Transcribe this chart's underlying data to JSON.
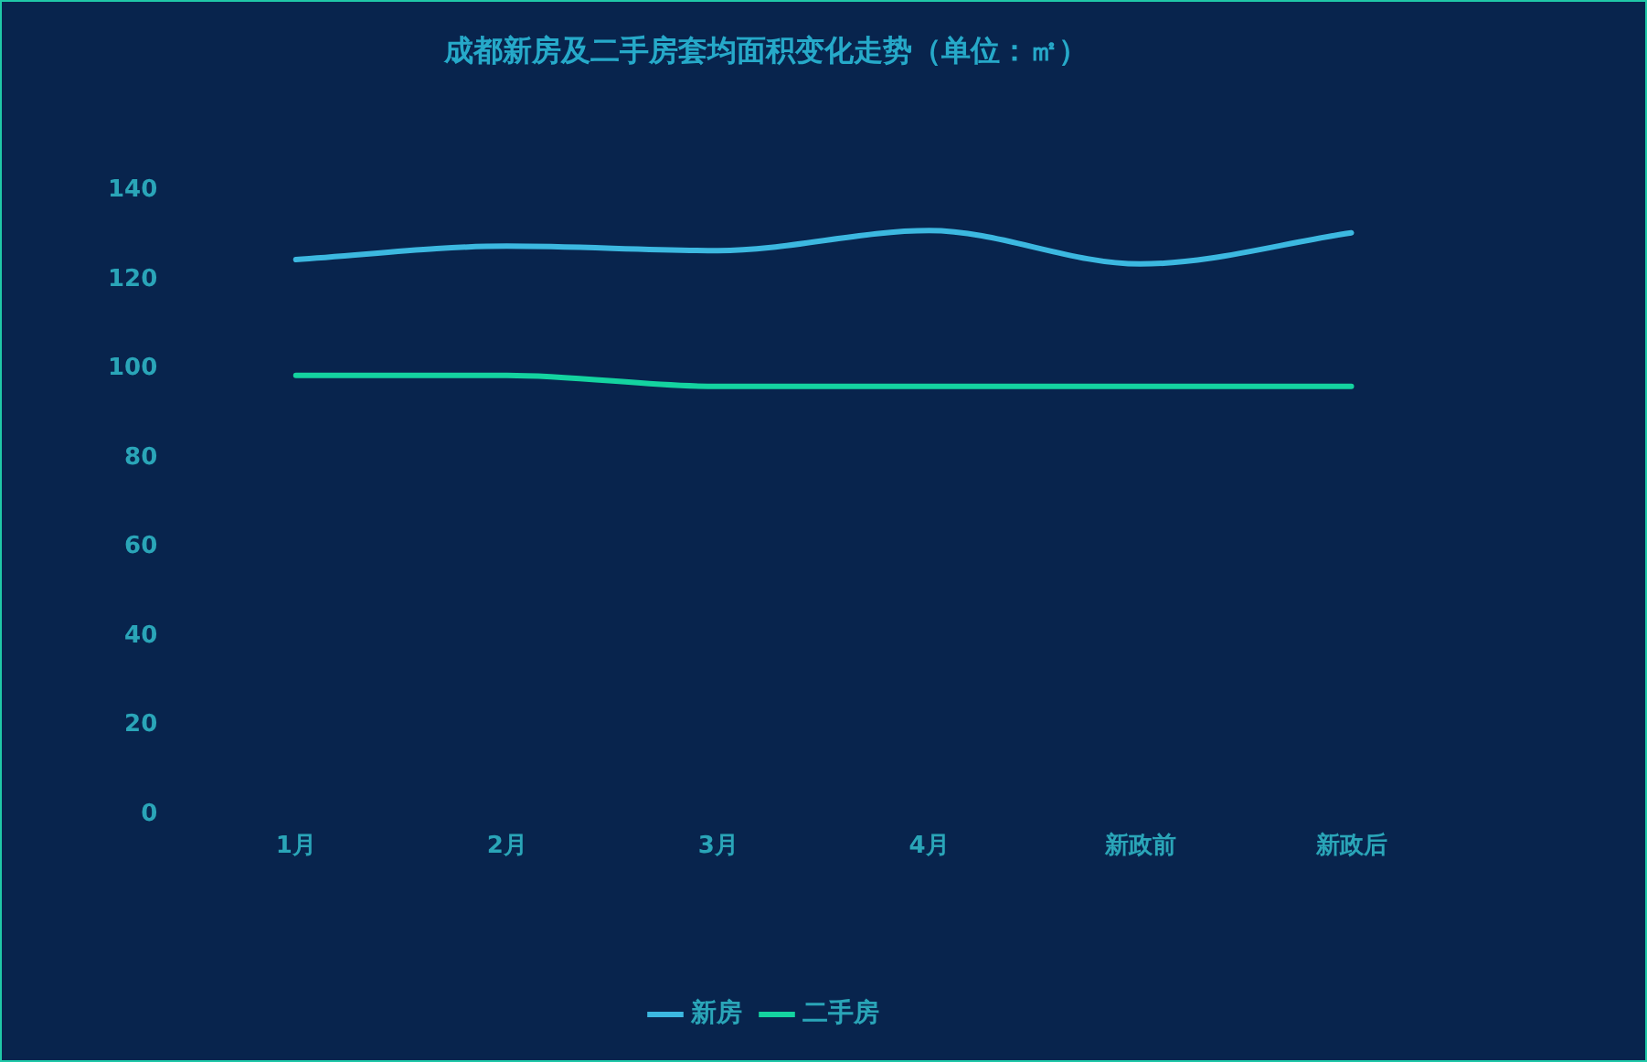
{
  "chart_data": {
    "type": "line",
    "title": "成都新房及二手房套均面积变化走势（单位：㎡）",
    "categories": [
      "1月",
      "2月",
      "3月",
      "4月",
      "新政前",
      "新政后"
    ],
    "series": [
      {
        "name": "新房",
        "color": "#3cb8e0",
        "values": [
          124.5,
          127.5,
          126.5,
          131,
          123.5,
          130.5
        ]
      },
      {
        "name": "二手房",
        "color": "#14d3a0",
        "values": [
          98.5,
          98.5,
          96,
          96,
          96,
          96
        ]
      }
    ],
    "ylim": [
      0,
      140
    ],
    "yticks": [
      0,
      20,
      40,
      60,
      80,
      100,
      120,
      140
    ],
    "grid": false,
    "legend": "bottom",
    "marker": "none",
    "line_style": "solid"
  }
}
